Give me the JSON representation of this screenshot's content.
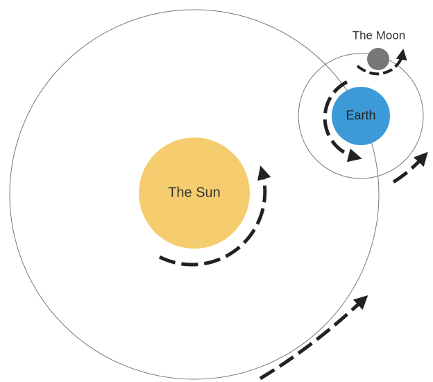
{
  "sun": {
    "label": "The Sun"
  },
  "earth": {
    "label": "Earth"
  },
  "moon": {
    "label": "The Moon"
  }
}
